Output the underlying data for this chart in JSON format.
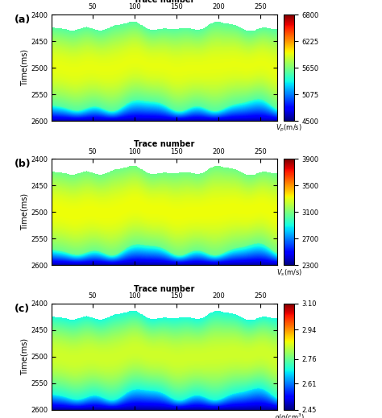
{
  "trace_min": 1,
  "trace_max": 270,
  "time_min": 2400,
  "time_max": 2600,
  "xticks": [
    50,
    100,
    150,
    200,
    250
  ],
  "yticks": [
    2400,
    2450,
    2500,
    2550,
    2600
  ],
  "xlabel": "Trace number",
  "ylabel": "Time(ms)",
  "panel_labels": [
    "(a)",
    "(b)",
    "(c)"
  ],
  "cbar_a_ticks": [
    4500,
    5075,
    5650,
    6225,
    6800
  ],
  "cbar_b_ticks": [
    2300,
    2700,
    3100,
    3500,
    3900
  ],
  "cbar_c_ticks": [
    2.45,
    2.61,
    2.76,
    2.94,
    3.1
  ],
  "vp_min": 4500,
  "vp_max": 6800,
  "vs_min": 2300,
  "vs_max": 3900,
  "rho_min": 2.45,
  "rho_max": 3.1,
  "n_traces": 270,
  "n_time": 200
}
